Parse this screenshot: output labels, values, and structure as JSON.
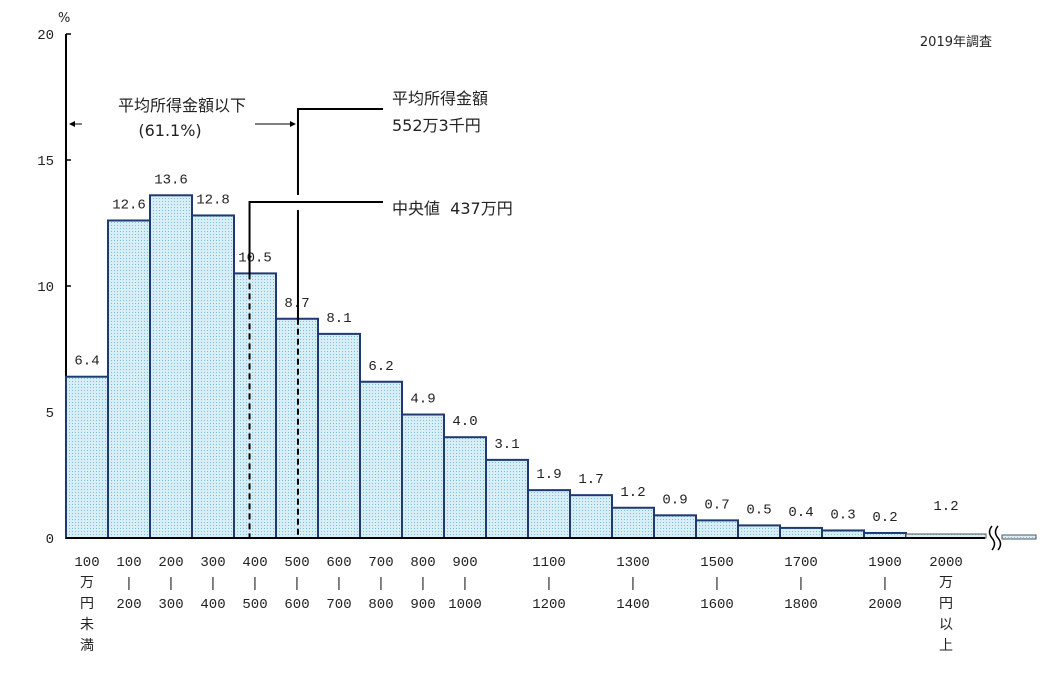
{
  "chart_data": {
    "type": "bar",
    "title": "",
    "survey_note": "2019年調査",
    "ylabel": "%",
    "ylim": [
      0,
      20
    ],
    "yticks": [
      "0",
      "5",
      "10",
      "15",
      "20"
    ],
    "categories": [
      {
        "label": [
          "100",
          "万",
          "円",
          "未",
          "満"
        ],
        "value": 6.4
      },
      {
        "label": [
          "100",
          "|",
          "200"
        ],
        "value": 12.6
      },
      {
        "label": [
          "200",
          "|",
          "300"
        ],
        "value": 13.6
      },
      {
        "label": [
          "300",
          "|",
          "400"
        ],
        "value": 12.8
      },
      {
        "label": [
          "400",
          "|",
          "500"
        ],
        "value": 10.5
      },
      {
        "label": [
          "500",
          "|",
          "600"
        ],
        "value": 8.7
      },
      {
        "label": [
          "600",
          "|",
          "700"
        ],
        "value": 8.1
      },
      {
        "label": [
          "700",
          "|",
          "800"
        ],
        "value": 6.2
      },
      {
        "label": [
          "800",
          "|",
          "900"
        ],
        "value": 4.9
      },
      {
        "label": [
          "900",
          "|",
          "1000"
        ],
        "value": 4.0
      },
      {
        "label": [],
        "value": 3.1
      },
      {
        "label": [
          "1100",
          "|",
          "1200"
        ],
        "value": 1.9
      },
      {
        "label": [],
        "value": 1.7
      },
      {
        "label": [
          "1300",
          "|",
          "1400"
        ],
        "value": 1.2
      },
      {
        "label": [],
        "value": 0.9
      },
      {
        "label": [
          "1500",
          "|",
          "1600"
        ],
        "value": 0.7
      },
      {
        "label": [],
        "value": 0.5
      },
      {
        "label": [
          "1700",
          "|",
          "1800"
        ],
        "value": 0.4
      },
      {
        "label": [],
        "value": 0.3
      },
      {
        "label": [
          "1900",
          "|",
          "2000"
        ],
        "value": 0.2
      },
      {
        "label": [
          "2000",
          "万",
          "円",
          "以",
          "上"
        ],
        "value": 1.2
      }
    ],
    "value_labels": [
      "6.4",
      "12.6",
      "13.6",
      "12.8",
      "10.5",
      "8.7",
      "8.1",
      "6.2",
      "4.9",
      "4.0",
      "3.1",
      "1.9",
      "1.7",
      "1.2",
      "0.9",
      "0.7",
      "0.5",
      "0.4",
      "0.3",
      "0.2",
      "1.2"
    ],
    "annotations": {
      "below_mean": "平均所得金額以下",
      "below_mean_pct": "(61.1%)",
      "mean_title": "平均所得金額",
      "mean_value": "552万3千円",
      "mean_x": 552.3,
      "median": "中央値  437万円",
      "median_x": 437
    },
    "colors": {
      "bar_fill": "#cfe9f3",
      "bar_dot": "#7fbfd8",
      "bar_stroke": "#1f3a73"
    }
  }
}
